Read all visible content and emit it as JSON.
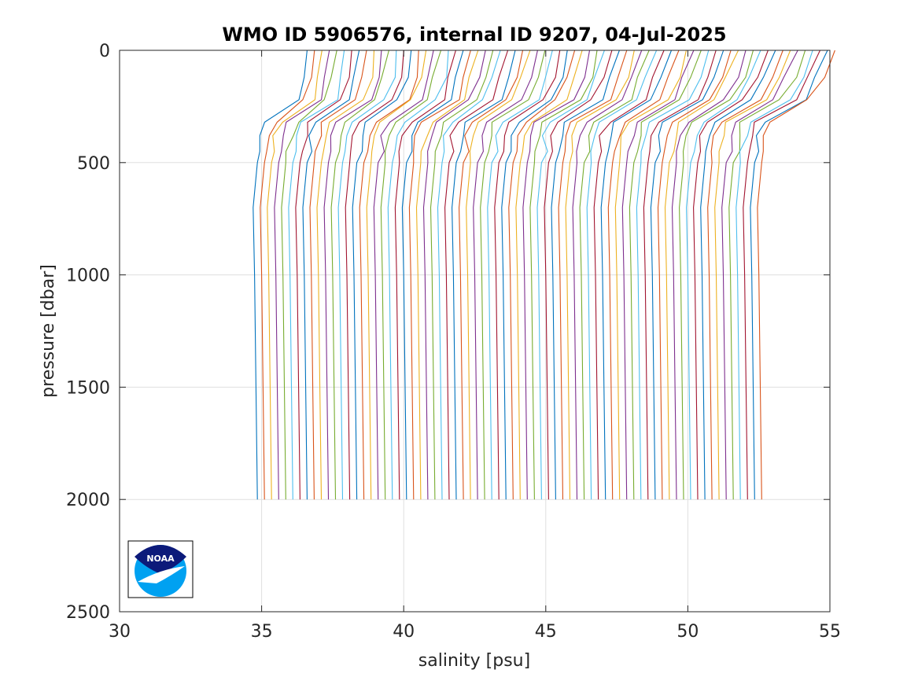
{
  "chart_data": {
    "type": "line",
    "title": "WMO ID 5906576, internal ID 9207, 04-Jul-2025",
    "xlabel": "salinity [psu]",
    "ylabel": "pressure [dbar]",
    "xlim": [
      30,
      55
    ],
    "ylim": [
      0,
      2500
    ],
    "y_reversed": true,
    "grid": true,
    "xticks": [
      "30",
      "35",
      "40",
      "45",
      "50",
      "55"
    ],
    "yticks": [
      "0",
      "500",
      "1000",
      "1500",
      "2000",
      "2500"
    ],
    "offset_per_profile": 0.25,
    "series_count": 72,
    "profile_shape": {
      "pressure": [
        0,
        120,
        220,
        320,
        380,
        450,
        500,
        700,
        1000,
        1500,
        2000
      ],
      "salinity": [
        36.6,
        36.5,
        36.3,
        35.2,
        35.0,
        34.95,
        34.85,
        34.7,
        34.75,
        34.8,
        34.85
      ]
    },
    "colors": [
      "#0072BD",
      "#D95319",
      "#EDB120",
      "#7E2F8E",
      "#77AC30",
      "#4DBEEE",
      "#A2142F"
    ],
    "logo": "NOAA"
  }
}
